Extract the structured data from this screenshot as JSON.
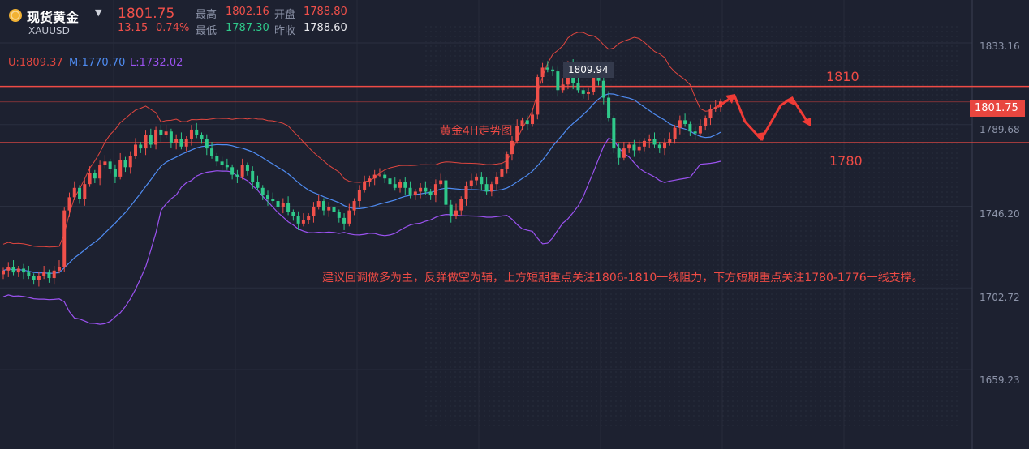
{
  "header": {
    "instrument": "现货黄金",
    "symbol": "XAUUSD",
    "price": "1801.75",
    "change": "13.15",
    "change_pct": "0.74%",
    "high_label": "最高",
    "high": "1802.16",
    "low_label": "最低",
    "low": "1787.30",
    "open_label": "开盘",
    "open": "1788.80",
    "prev_label": "昨收",
    "prev_close": "1788.60"
  },
  "indicator": {
    "upper": "U:1809.37",
    "middle": "M:1770.70",
    "lower": "L:1732.02"
  },
  "colors": {
    "up": "#f0504a",
    "down": "#2fc98a",
    "upper_band": "#e0463f",
    "middle_band": "#4f8cf2",
    "lower_band": "#9b52f0",
    "background": "#1d2130"
  },
  "chart_data": {
    "type": "candlestick",
    "title": "黄金4H走势图",
    "ylim": [
      1617,
      1856
    ],
    "y_ticks": [
      "1833.16",
      "1789.68",
      "1746.20",
      "1702.72",
      "1659.23"
    ],
    "last_price_badge": "1801.75",
    "peak_label": "1809.94",
    "resistance": {
      "value": 1810,
      "label": "1810"
    },
    "support": {
      "value": 1780,
      "label": "1780"
    },
    "annotation": "建议回调做多为主，反弹做空为辅，上方短期重点关注1806-1810一线阻力，下方短期重点关注1780-1776一线支撑。",
    "close_series": [
      1712,
      1714,
      1711,
      1713,
      1711,
      1709,
      1707,
      1709,
      1711,
      1708,
      1712,
      1714,
      1744,
      1751,
      1756,
      1750,
      1758,
      1764,
      1761,
      1768,
      1770,
      1766,
      1762,
      1771,
      1767,
      1773,
      1779,
      1777,
      1784,
      1779,
      1787,
      1784,
      1786,
      1780,
      1782,
      1778,
      1782,
      1787,
      1784,
      1782,
      1777,
      1773,
      1770,
      1768,
      1767,
      1763,
      1762,
      1768,
      1765,
      1759,
      1756,
      1752,
      1750,
      1749,
      1746,
      1748,
      1743,
      1741,
      1737,
      1739,
      1741,
      1746,
      1749,
      1744,
      1746,
      1743,
      1740,
      1737,
      1744,
      1749,
      1755,
      1759,
      1761,
      1763,
      1763,
      1761,
      1758,
      1756,
      1759,
      1756,
      1752,
      1754,
      1756,
      1754,
      1752,
      1758,
      1760,
      1747,
      1741,
      1744,
      1750,
      1757,
      1760,
      1762,
      1758,
      1754,
      1758,
      1762,
      1766,
      1774,
      1781,
      1789,
      1792,
      1790,
      1795,
      1815,
      1820,
      1819,
      1818,
      1808,
      1811,
      1822,
      1812,
      1808,
      1806,
      1807,
      1819,
      1813,
      1804,
      1793,
      1777,
      1772,
      1777,
      1779,
      1776,
      1778,
      1781,
      1782,
      1779,
      1777,
      1780,
      1782,
      1788,
      1792,
      1790,
      1786,
      1785,
      1789,
      1793,
      1798,
      1799,
      1802
    ],
    "peak_marker": {
      "value": 1809.94
    }
  }
}
